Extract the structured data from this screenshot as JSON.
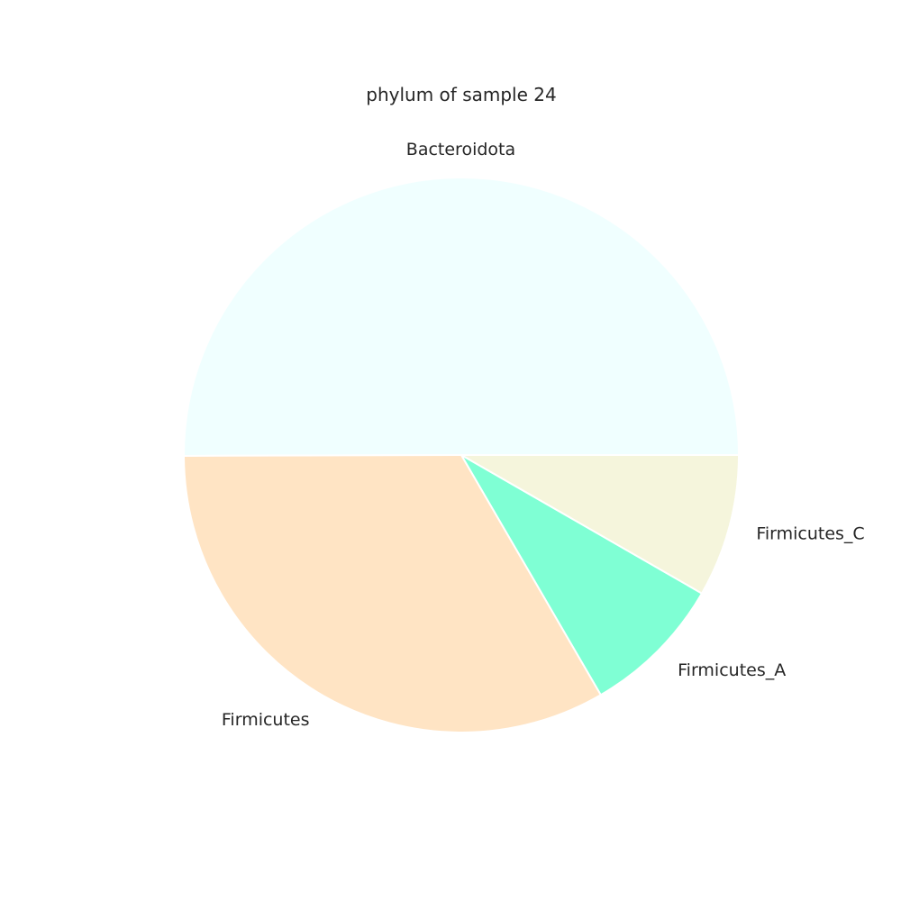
{
  "chart_data": {
    "type": "pie",
    "title": "phylum of sample 24",
    "start_angle_deg": 0,
    "direction": "counterclockwise",
    "slices": [
      {
        "label": "Bacteroidota",
        "value": 50.0,
        "color": "#f0ffff"
      },
      {
        "label": "Firmicutes",
        "value": 33.3,
        "color": "#ffe4c4"
      },
      {
        "label": "Firmicutes_A",
        "value": 8.3,
        "color": "#7fffd4"
      },
      {
        "label": "Firmicutes_C",
        "value": 8.3,
        "color": "#f5f5dc"
      }
    ]
  }
}
